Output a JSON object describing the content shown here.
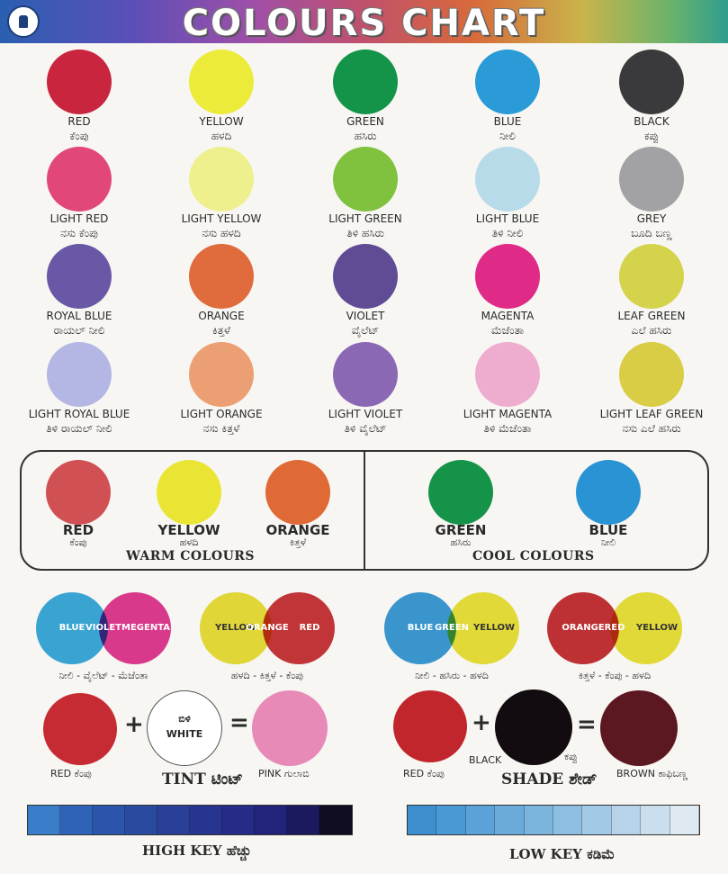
{
  "header": {
    "title": "COLOURS CHART"
  },
  "swatches": [
    {
      "en": "RED",
      "kn": "ಕೆಂಪು",
      "color": "#c9253f"
    },
    {
      "en": "YELLOW",
      "kn": "ಹಳದಿ",
      "color": "#eceb3a"
    },
    {
      "en": "GREEN",
      "kn": "ಹಸಿರು",
      "color": "#139448"
    },
    {
      "en": "BLUE",
      "kn": "ನೀಲಿ",
      "color": "#2a9bd6"
    },
    {
      "en": "BLACK",
      "kn": "ಕಪ್ಪು",
      "color": "#3a3a3c"
    },
    {
      "en": "LIGHT RED",
      "kn": "ನಸು ಕೆಂಪು",
      "color": "#e2477a"
    },
    {
      "en": "LIGHT YELLOW",
      "kn": "ನಸು ಹಳದಿ",
      "color": "#eef08e"
    },
    {
      "en": "LIGHT GREEN",
      "kn": "ತಿಳಿ ಹಸಿರು",
      "color": "#80c13e"
    },
    {
      "en": "LIGHT BLUE",
      "kn": "ತಿಳಿ ನೀಲಿ",
      "color": "#b7dbe9"
    },
    {
      "en": "GREY",
      "kn": "ಬೂದಿ ಬಣ್ಣ",
      "color": "#a2a2a4"
    },
    {
      "en": "ROYAL BLUE",
      "kn": "ರಾಯಲ್ ನೀಲಿ",
      "color": "#6a58a6"
    },
    {
      "en": "ORANGE",
      "kn": "ಕಿತ್ತಳೆ",
      "color": "#e06b3c"
    },
    {
      "en": "VIOLET",
      "kn": "ವೈಲೆಟ್",
      "color": "#5f4c95"
    },
    {
      "en": "MAGENTA",
      "kn": "ಮೆಜೆಂತಾ",
      "color": "#df2a87"
    },
    {
      "en": "LEAF GREEN",
      "kn": "ಎಲೆ ಹಸಿರು",
      "color": "#d4d34b"
    },
    {
      "en": "LIGHT ROYAL BLUE",
      "kn": "ತಿಳಿ ರಾಯಲ್ ನೀಲಿ",
      "color": "#b4b6e3"
    },
    {
      "en": "LIGHT ORANGE",
      "kn": "ನಸು ಕಿತ್ತಳೆ",
      "color": "#eb9f72"
    },
    {
      "en": "LIGHT VIOLET",
      "kn": "ತಿಳಿ ವೈಲೆಟ್",
      "color": "#8a68b4"
    },
    {
      "en": "LIGHT MAGENTA",
      "kn": "ತಿಳಿ ಮೆಜೆಂತಾ",
      "color": "#eeaccf"
    },
    {
      "en": "LIGHT LEAF GREEN",
      "kn": "ನಸು ಎಲೆ ಹಸಿರು",
      "color": "#d8cd45"
    }
  ],
  "warm": {
    "title": "WARM COLOURS",
    "items": [
      {
        "en": "RED",
        "kn": "ಕೆಂಪು",
        "color": "#d05054"
      },
      {
        "en": "YELLOW",
        "kn": "ಹಳದಿ",
        "color": "#eae534"
      },
      {
        "en": "ORANGE",
        "kn": "ಕಿತ್ತಳೆ",
        "color": "#e06a36"
      }
    ]
  },
  "cool": {
    "title": "COOL COLOURS",
    "items": [
      {
        "en": "GREEN",
        "kn": "ಹಸಿರು",
        "color": "#159348"
      },
      {
        "en": "BLUE",
        "kn": "ನೀಲಿ",
        "color": "#2a93d4"
      }
    ]
  },
  "venn": [
    {
      "a": "BLUE",
      "mid": "VIOLET",
      "b": "MEGENTA",
      "ca": "#2aa3dc",
      "cb": "#de2a8a",
      "caption": "ನೀಲಿ - ವೈಲೆಟ್ - ಮೆಜೆಂತಾ"
    },
    {
      "a": "YELLOW",
      "mid": "ORANGE",
      "b": "RED",
      "ca": "#e6dc2a",
      "cb": "#c4262a",
      "caption": "ಹಳದಿ - ಕಿತ್ತಳೆ - ಕೆಂಪು"
    },
    {
      "a": "BLUE",
      "mid": "GREEN",
      "b": "YELLOW",
      "ca": "#2a93d4",
      "cb": "#e8df2a",
      "caption": "ನೀಲಿ - ಹಸಿರು - ಹಳದಿ"
    },
    {
      "a": "ORANGE",
      "mid": "RED",
      "b": "YELLOW",
      "ca": "#be1f25",
      "cb": "#e8df2a",
      "caption": "ಕಿತ್ತಳೆ - ಕೆಂಪು - ಹಳದಿ"
    }
  ],
  "tint": {
    "red": "RED ಕೆಂಪು",
    "white_kn": "ಬಿಳಿ",
    "white": "WHITE",
    "pink": "PINK ಗುಲಾಬಿ",
    "label": "TINT ಟಿಂಟ್",
    "plus": "+",
    "eq": "="
  },
  "shade": {
    "red": "RED ಕೆಂಪು",
    "black": "BLACK",
    "black_kn": "ಕಪ್ಪು",
    "brown": "BROWN ಕಾಫಿಬಣ್ಣ",
    "label": "SHADE ಶೇಡ್",
    "plus": "+",
    "eq": "="
  },
  "keys": {
    "high": "HIGH KEY ಹೆಚ್ಚು",
    "low": "LOW KEY ಕಡಿಮೆ"
  },
  "colors": {
    "high_key": [
      "#3a7dc8",
      "#2f63b8",
      "#2a55aa",
      "#2a4aa0",
      "#2a3f98",
      "#283590",
      "#252b86",
      "#22237a",
      "#1c1a5e",
      "#0f0c22"
    ],
    "low_key": [
      "#3d8fd0",
      "#4a98d4",
      "#5aa2d8",
      "#6aabdb",
      "#7bb5de",
      "#8ebfe2",
      "#a2c9e6",
      "#b6d3e9",
      "#cadeed",
      "#dfe9f1"
    ]
  }
}
